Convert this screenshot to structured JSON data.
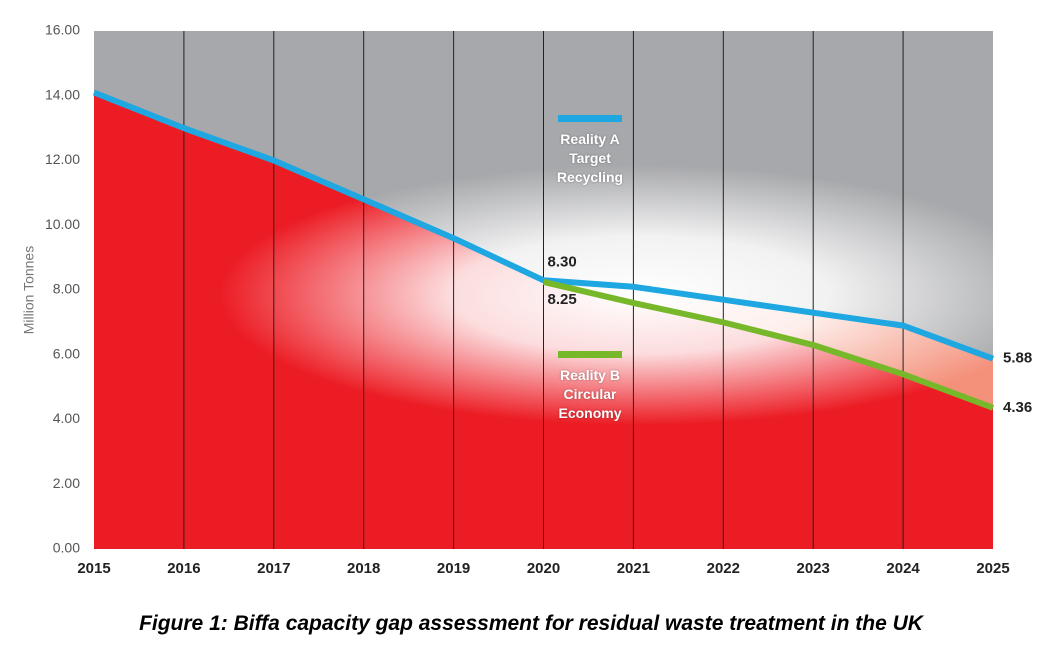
{
  "chart_data": {
    "type": "area",
    "title": "Figure 1: Biffa capacity gap assessment for residual waste treatment in the UK",
    "y_label": "Million Tonnes",
    "x": [
      2015,
      2016,
      2017,
      2018,
      2019,
      2020,
      2021,
      2022,
      2023,
      2024,
      2025
    ],
    "xlim": [
      2015,
      2025
    ],
    "ylim": [
      0,
      16
    ],
    "yticks": [
      {
        "value": 0,
        "label": "0.00"
      },
      {
        "value": 2,
        "label": "2.00"
      },
      {
        "value": 4,
        "label": "4.00"
      },
      {
        "value": 6,
        "label": "6.00"
      },
      {
        "value": 8,
        "label": "8.00"
      },
      {
        "value": 10,
        "label": "10.00"
      },
      {
        "value": 12,
        "label": "12.00"
      },
      {
        "value": 14,
        "label": "14.00"
      },
      {
        "value": 16,
        "label": "16.00"
      }
    ],
    "series": [
      {
        "name": "Reality A Target Recycling",
        "color": "#1ea7e1",
        "values": [
          14.1,
          13.0,
          12.0,
          10.8,
          9.6,
          8.3,
          8.1,
          7.7,
          7.3,
          6.9,
          5.88
        ],
        "value_labels": [
          null,
          null,
          null,
          null,
          null,
          "8.30",
          null,
          null,
          null,
          null,
          "5.88"
        ]
      },
      {
        "name": "Reality B Circular Economy",
        "color": "#76b82a",
        "values": [
          null,
          null,
          null,
          null,
          null,
          8.25,
          7.6,
          7.0,
          6.3,
          5.4,
          4.36
        ],
        "value_labels": [
          null,
          null,
          null,
          null,
          null,
          "8.25",
          null,
          null,
          null,
          null,
          "4.36"
        ]
      }
    ],
    "grid": true
  }
}
